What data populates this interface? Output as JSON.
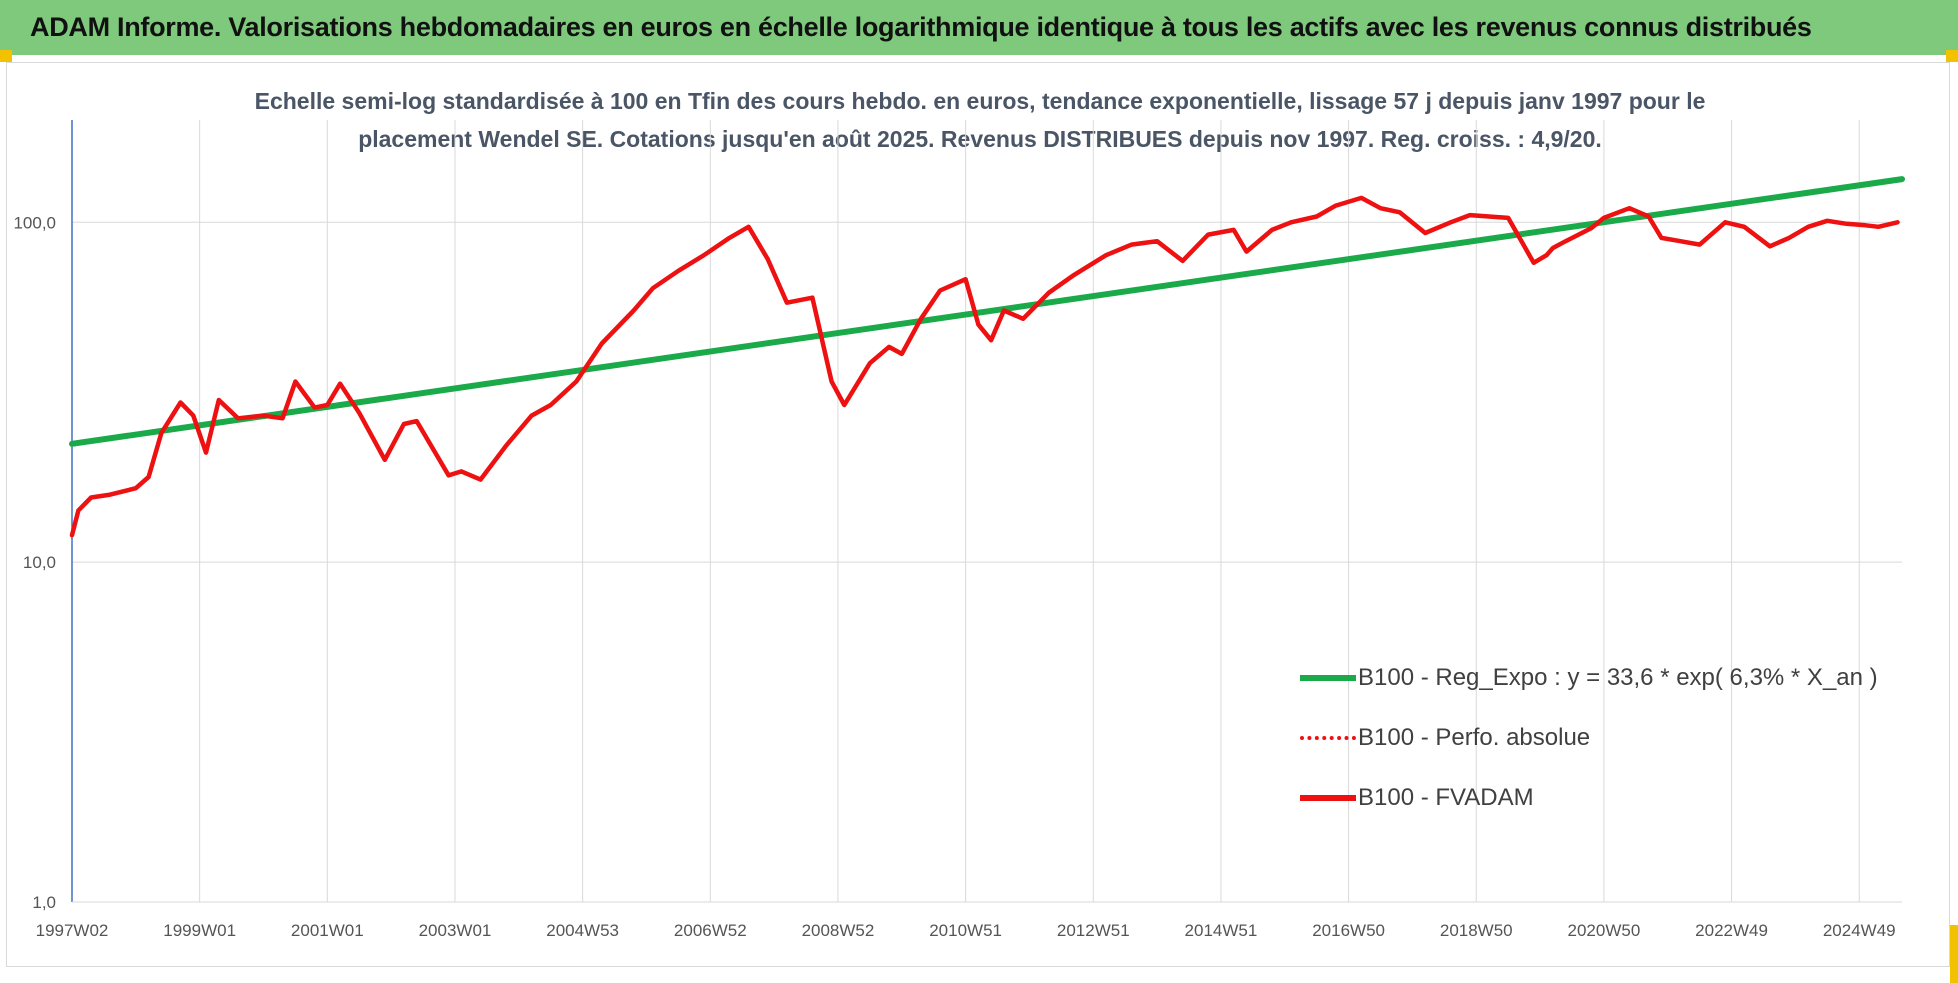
{
  "header": {
    "title": "ADAM Informe. Valorisations hebdomadaires en euros en échelle logarithmique identique à tous les actifs avec les revenus connus distribués"
  },
  "colors": {
    "header_bg": "#7ec97c",
    "regression": "#1aaa4a",
    "fvadam": "#ee1111",
    "grid": "#d9d9d9",
    "axis": "#4472c4"
  },
  "chart_data": {
    "type": "line",
    "title": "Echelle semi-log standardisée à 100 en Tfin des cours hebdo. en euros, tendance exponentielle, lissage 57 j depuis janv 1997 pour le placement Wendel SE. Cotations jusqu'en août 2025. Revenus DISTRIBUES depuis nov 1997. Reg. croiss. : 4,9/20.",
    "title_lines": [
      "Echelle semi-log standardisée à 100 en Tfin des cours hebdo. en euros, tendance exponentielle, lissage 57 j depuis janv 1997 pour le",
      "placement Wendel SE. Cotations jusqu'en août 2025. Revenus DISTRIBUES depuis nov 1997. Reg. croiss. : 4,9/20."
    ],
    "y_scale": "log",
    "ylim": [
      1,
      200
    ],
    "xlim": [
      1997.0,
      2025.67
    ],
    "y_ticks": [
      {
        "value": 1,
        "label": "1,0"
      },
      {
        "value": 10,
        "label": "10,0"
      },
      {
        "value": 100,
        "label": "100,0"
      }
    ],
    "x_ticks": [
      {
        "value": 1997.0,
        "label": "1997W02"
      },
      {
        "value": 1999.0,
        "label": "1999W01"
      },
      {
        "value": 2001.0,
        "label": "2001W01"
      },
      {
        "value": 2003.0,
        "label": "2003W01"
      },
      {
        "value": 2005.0,
        "label": "2004W53"
      },
      {
        "value": 2007.0,
        "label": "2006W52"
      },
      {
        "value": 2009.0,
        "label": "2008W52"
      },
      {
        "value": 2011.0,
        "label": "2010W51"
      },
      {
        "value": 2013.0,
        "label": "2012W51"
      },
      {
        "value": 2015.0,
        "label": "2014W51"
      },
      {
        "value": 2017.0,
        "label": "2016W50"
      },
      {
        "value": 2019.0,
        "label": "2018W50"
      },
      {
        "value": 2021.0,
        "label": "2020W50"
      },
      {
        "value": 2023.0,
        "label": "2022W49"
      },
      {
        "value": 2025.0,
        "label": "2024W49"
      }
    ],
    "grid": true,
    "legend_position": "bottom-right",
    "series": [
      {
        "name": "B100 - Reg_Expo : y = 33,6 * exp( 6,3% *  X_an )",
        "style": "solid-green",
        "x": [
          1997.0,
          2025.67
        ],
        "values": [
          22.3,
          134.0
        ]
      },
      {
        "name": "B100 - Perfo. absolue",
        "style": "dotted-red",
        "x": [],
        "values": []
      },
      {
        "name": "B100 - FVADAM",
        "style": "solid-red",
        "x": [
          1997.0,
          1997.1,
          1997.3,
          1997.6,
          1998.0,
          1998.2,
          1998.4,
          1998.7,
          1998.9,
          1999.1,
          1999.3,
          1999.6,
          2000.0,
          2000.3,
          2000.5,
          2000.8,
          2001.0,
          2001.2,
          2001.5,
          2001.9,
          2002.2,
          2002.4,
          2002.9,
          2003.1,
          2003.4,
          2003.8,
          2004.2,
          2004.5,
          2004.9,
          2005.3,
          2005.8,
          2006.1,
          2006.5,
          2006.9,
          2007.3,
          2007.6,
          2007.9,
          2008.2,
          2008.6,
          2008.9,
          2009.1,
          2009.5,
          2009.8,
          2010.0,
          2010.3,
          2010.6,
          2011.0,
          2011.2,
          2011.4,
          2011.6,
          2011.9,
          2012.3,
          2012.7,
          2013.2,
          2013.6,
          2014.0,
          2014.4,
          2014.8,
          2015.2,
          2015.4,
          2015.8,
          2016.1,
          2016.5,
          2016.8,
          2017.2,
          2017.5,
          2017.8,
          2018.2,
          2018.6,
          2018.9,
          2019.2,
          2019.5,
          2019.9,
          2020.1,
          2020.2,
          2020.4,
          2020.8,
          2021.0,
          2021.4,
          2021.7,
          2021.9,
          2022.2,
          2022.5,
          2022.9,
          2023.2,
          2023.6,
          2023.9,
          2024.2,
          2024.5,
          2024.8,
          2025.1,
          2025.3,
          2025.6
        ],
        "values": [
          12.0,
          14.2,
          15.5,
          15.8,
          16.5,
          17.8,
          24.0,
          29.5,
          27.0,
          21.0,
          30.0,
          26.5,
          27.0,
          26.5,
          34.0,
          28.5,
          29.0,
          33.5,
          27.5,
          20.0,
          25.5,
          26.0,
          18.0,
          18.5,
          17.5,
          22.0,
          27.0,
          29.0,
          34.0,
          44.0,
          55.0,
          64.0,
          72.0,
          80.0,
          90.0,
          97.0,
          78.0,
          58.0,
          60.0,
          34.0,
          29.0,
          38.5,
          43.0,
          41.0,
          52.0,
          63.0,
          68.0,
          50.0,
          45.0,
          55.0,
          52.0,
          62.0,
          70.0,
          80.0,
          86.0,
          88.0,
          77.0,
          92.0,
          95.0,
          82.0,
          95.0,
          100.0,
          104.0,
          112.0,
          118.0,
          110.0,
          107.0,
          93.0,
          100.0,
          105.0,
          104.0,
          103.0,
          76.0,
          80.0,
          84.0,
          88.0,
          96.0,
          103.0,
          110.0,
          104.0,
          90.0,
          88.0,
          86.0,
          100.0,
          97.0,
          85.0,
          90.0,
          97.0,
          101.0,
          99.0,
          98.0,
          97.0,
          100.0
        ]
      }
    ]
  }
}
